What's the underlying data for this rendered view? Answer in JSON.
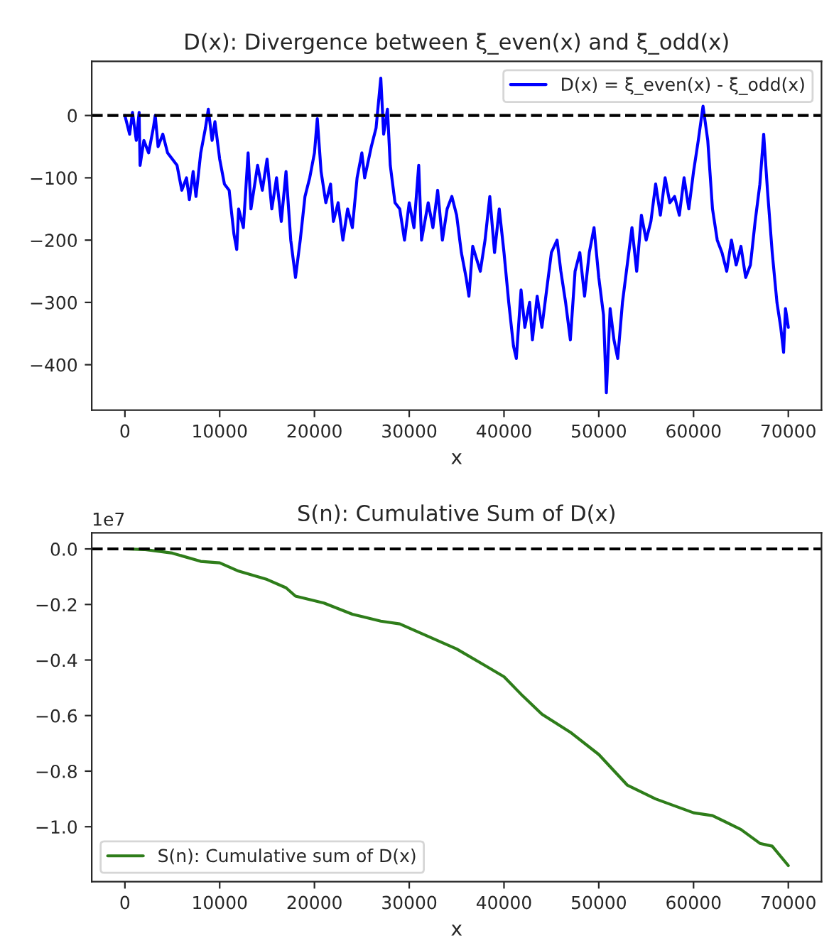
{
  "chart_data": [
    {
      "type": "line",
      "title": "D(x): Divergence between ξ_even(x) and ξ_odd(x)",
      "xlabel": "x",
      "legend": "top right",
      "grid": false,
      "series": [
        {
          "name": "D(x) = ξ_even(x) - ξ_odd(x)",
          "color": "#0000ff",
          "x": [
            0,
            500,
            800,
            1200,
            1500,
            1600,
            2000,
            2500,
            3000,
            3200,
            3500,
            4000,
            4500,
            5000,
            5500,
            6000,
            6500,
            6800,
            7200,
            7500,
            8000,
            8500,
            8800,
            9200,
            9500,
            10000,
            10500,
            11000,
            11500,
            11800,
            12000,
            12500,
            13000,
            13300,
            14000,
            14500,
            15000,
            15500,
            16000,
            16500,
            17000,
            17500,
            18000,
            18500,
            19000,
            19500,
            20000,
            20300,
            20700,
            21200,
            21700,
            22000,
            22500,
            23000,
            23500,
            24000,
            24500,
            25000,
            25300,
            26000,
            26500,
            27000,
            27300,
            27700,
            28000,
            28500,
            29000,
            29500,
            30000,
            30500,
            31000,
            31300,
            32000,
            32500,
            33000,
            33500,
            34000,
            34500,
            35000,
            35500,
            36000,
            36300,
            36700,
            37500,
            38000,
            38500,
            39000,
            39500,
            40000,
            40500,
            41000,
            41300,
            41800,
            42200,
            42700,
            43000,
            43500,
            44000,
            44500,
            45000,
            45600,
            46000,
            46500,
            47000,
            47500,
            48000,
            48500,
            49000,
            49500,
            50000,
            50500,
            50800,
            51200,
            51600,
            52000,
            52500,
            53000,
            53500,
            54000,
            54500,
            55000,
            55500,
            56000,
            56500,
            57000,
            57500,
            58000,
            58500,
            59000,
            59500,
            60000,
            60500,
            61000,
            61500,
            62000,
            62500,
            63000,
            63500,
            64000,
            64500,
            65000,
            65500,
            66000,
            66500,
            67000,
            67400,
            67800,
            68300,
            68800,
            69200,
            69500,
            69700,
            70000
          ],
          "values": [
            0,
            -30,
            5,
            -40,
            5,
            -80,
            -40,
            -60,
            -20,
            0,
            -50,
            -30,
            -60,
            -70,
            -80,
            -120,
            -100,
            -135,
            -90,
            -130,
            -60,
            -20,
            10,
            -40,
            -10,
            -70,
            -110,
            -120,
            -190,
            -215,
            -150,
            -180,
            -60,
            -150,
            -80,
            -120,
            -70,
            -150,
            -100,
            -170,
            -90,
            -200,
            -260,
            -200,
            -130,
            -100,
            -60,
            -5,
            -90,
            -140,
            -110,
            -170,
            -140,
            -200,
            -150,
            -180,
            -100,
            -60,
            -100,
            -50,
            -20,
            60,
            -30,
            10,
            -80,
            -140,
            -150,
            -200,
            -140,
            -180,
            -80,
            -200,
            -140,
            -180,
            -120,
            -200,
            -150,
            -130,
            -160,
            -220,
            -260,
            -290,
            -210,
            -250,
            -200,
            -130,
            -220,
            -150,
            -220,
            -300,
            -370,
            -390,
            -280,
            -340,
            -300,
            -360,
            -290,
            -340,
            -280,
            -220,
            -200,
            -250,
            -300,
            -360,
            -250,
            -220,
            -290,
            -220,
            -180,
            -260,
            -320,
            -445,
            -310,
            -360,
            -390,
            -300,
            -240,
            -180,
            -250,
            -160,
            -200,
            -170,
            -110,
            -160,
            -100,
            -140,
            -130,
            -160,
            -100,
            -150,
            -90,
            -40,
            15,
            -40,
            -150,
            -200,
            -220,
            -250,
            -200,
            -240,
            -210,
            -260,
            -240,
            -170,
            -110,
            -30,
            -120,
            -220,
            -300,
            -340,
            -380,
            -310,
            -340
          ]
        }
      ],
      "xlim": [
        -3500,
        73500
      ],
      "xticks": [
        0,
        10000,
        20000,
        30000,
        40000,
        50000,
        60000,
        70000
      ],
      "ylim": [
        -473,
        87
      ],
      "yticks": [
        {
          "value": -400,
          "label": "−400"
        },
        {
          "value": -300,
          "label": "−300"
        },
        {
          "value": -200,
          "label": "−200"
        },
        {
          "value": -100,
          "label": "−100"
        },
        0
      ],
      "ref_lines": [
        {
          "axis": "y",
          "value": 0,
          "color": "#000000",
          "line_style": "dashed"
        }
      ]
    },
    {
      "type": "line",
      "title": "S(n): Cumulative Sum of D(x)",
      "xlabel": "x",
      "legend": "bottom left",
      "grid": false,
      "annotations": [
        "1e7"
      ],
      "series": [
        {
          "name": "S(n): Cumulative sum of D(x)",
          "color": "#2e7d1a",
          "x": [
            0,
            2000,
            5000,
            8000,
            10000,
            12000,
            15000,
            17000,
            18000,
            21000,
            24000,
            27000,
            29000,
            31000,
            35000,
            38000,
            40000,
            42000,
            44000,
            47000,
            50000,
            53000,
            56000,
            60000,
            62000,
            65000,
            67000,
            68300,
            70000
          ],
          "values": [
            0,
            -0.002,
            -0.015,
            -0.045,
            -0.05,
            -0.08,
            -0.11,
            -0.14,
            -0.17,
            -0.195,
            -0.235,
            -0.26,
            -0.27,
            -0.3,
            -0.36,
            -0.42,
            -0.46,
            -0.53,
            -0.595,
            -0.66,
            -0.74,
            -0.85,
            -0.9,
            -0.95,
            -0.96,
            -1.01,
            -1.06,
            -1.07,
            -1.14
          ]
        }
      ],
      "xlim": [
        -3500,
        73500
      ],
      "xticks": [
        0,
        10000,
        20000,
        30000,
        40000,
        50000,
        60000,
        70000
      ],
      "ylim": [
        -1.198,
        0.058
      ],
      "yticks": [
        {
          "value": -1.0,
          "label": "−1.0"
        },
        {
          "value": -0.8,
          "label": "−0.8"
        },
        {
          "value": -0.6,
          "label": "−0.6"
        },
        {
          "value": -0.4,
          "label": "−0.4"
        },
        {
          "value": -0.2,
          "label": "−0.2"
        },
        {
          "value": 0,
          "label": "0.0"
        }
      ],
      "ref_lines": [
        {
          "axis": "y",
          "value": 0,
          "color": "#000000",
          "line_style": "dashed"
        }
      ]
    }
  ]
}
